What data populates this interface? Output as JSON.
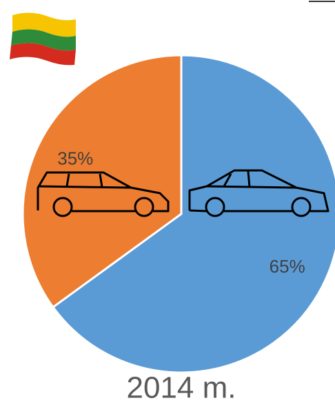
{
  "chart_data": {
    "type": "pie",
    "title": "2014 m.",
    "values": [
      65,
      35
    ],
    "value_labels": [
      "65%",
      "35%"
    ],
    "colors": [
      "#5b9bd5",
      "#ed7d31"
    ]
  }
}
